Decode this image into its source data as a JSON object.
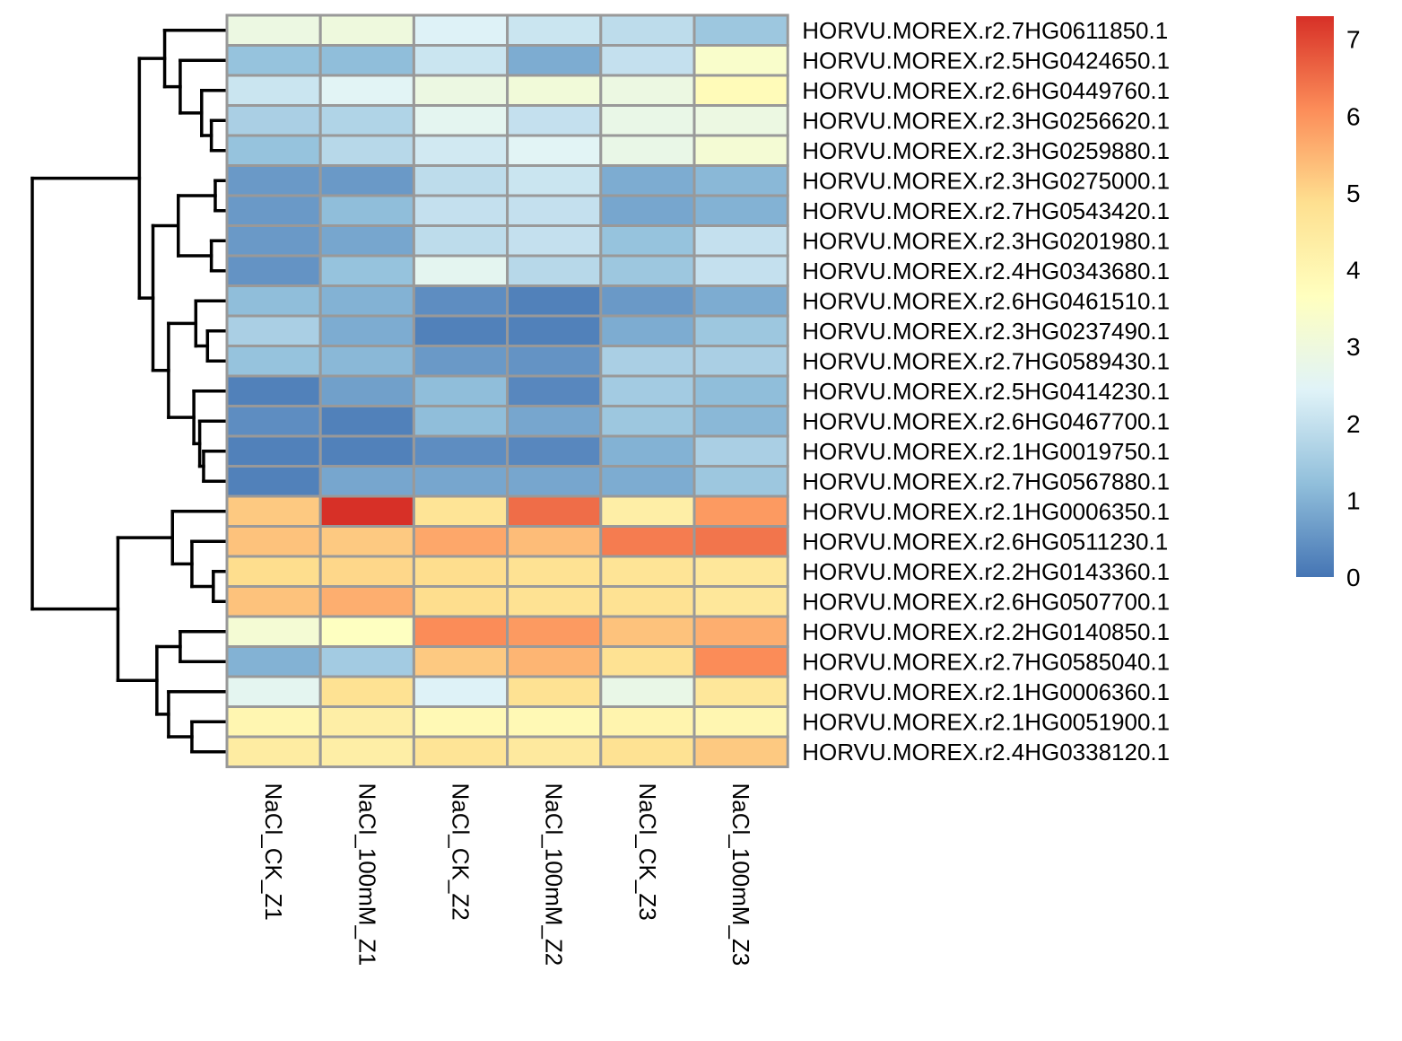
{
  "chart_data": {
    "type": "heatmap",
    "title": "",
    "columns": [
      "NaCl_CK_Z1",
      "NaCl_100mM_Z1",
      "NaCl_CK_Z2",
      "NaCl_100mM_Z2",
      "NaCl_CK_Z3",
      "NaCl_100mM_Z3"
    ],
    "rows": [
      "HORVU.MOREX.r2.7HG0611850.1",
      "HORVU.MOREX.r2.5HG0424650.1",
      "HORVU.MOREX.r2.6HG0449760.1",
      "HORVU.MOREX.r2.3HG0256620.1",
      "HORVU.MOREX.r2.3HG0259880.1",
      "HORVU.MOREX.r2.3HG0275000.1",
      "HORVU.MOREX.r2.7HG0543420.1",
      "HORVU.MOREX.r2.3HG0201980.1",
      "HORVU.MOREX.r2.4HG0343680.1",
      "HORVU.MOREX.r2.6HG0461510.1",
      "HORVU.MOREX.r2.3HG0237490.1",
      "HORVU.MOREX.r2.7HG0589430.1",
      "HORVU.MOREX.r2.5HG0414230.1",
      "HORVU.MOREX.r2.6HG0467700.1",
      "HORVU.MOREX.r2.1HG0019750.1",
      "HORVU.MOREX.r2.7HG0567880.1",
      "HORVU.MOREX.r2.1HG0006350.1",
      "HORVU.MOREX.r2.6HG0511230.1",
      "HORVU.MOREX.r2.2HG0143360.1",
      "HORVU.MOREX.r2.6HG0507700.1",
      "HORVU.MOREX.r2.2HG0140850.1",
      "HORVU.MOREX.r2.7HG0585040.1",
      "HORVU.MOREX.r2.1HG0006360.1",
      "HORVU.MOREX.r2.1HG0051900.1",
      "HORVU.MOREX.r2.4HG0338120.1"
    ],
    "values": [
      [
        2.9,
        3.0,
        2.4,
        2.1,
        1.9,
        1.4
      ],
      [
        1.3,
        1.2,
        2.1,
        0.9,
        2.0,
        3.4
      ],
      [
        2.1,
        2.5,
        2.9,
        3.1,
        2.9,
        3.8
      ],
      [
        1.6,
        1.7,
        2.6,
        2.0,
        2.8,
        2.9
      ],
      [
        1.3,
        1.8,
        2.2,
        2.5,
        2.8,
        3.2
      ],
      [
        0.6,
        0.6,
        1.9,
        2.1,
        0.9,
        1.1
      ],
      [
        0.6,
        1.2,
        2.0,
        2.0,
        0.8,
        1.0
      ],
      [
        0.6,
        0.8,
        1.9,
        2.0,
        1.3,
        2.0
      ],
      [
        0.5,
        1.3,
        2.6,
        1.8,
        1.4,
        2.0
      ],
      [
        1.2,
        1.0,
        0.4,
        0.2,
        0.6,
        0.9
      ],
      [
        1.6,
        0.9,
        0.2,
        0.2,
        0.9,
        1.4
      ],
      [
        1.3,
        1.1,
        0.6,
        0.5,
        1.6,
        1.6
      ],
      [
        0.2,
        0.7,
        1.2,
        0.3,
        1.5,
        1.2
      ],
      [
        0.4,
        0.2,
        1.2,
        0.8,
        1.4,
        1.1
      ],
      [
        0.2,
        0.2,
        0.4,
        0.3,
        1.0,
        1.6
      ],
      [
        0.2,
        0.8,
        0.8,
        0.8,
        0.9,
        1.4
      ],
      [
        5.2,
        7.3,
        4.7,
        6.5,
        4.3,
        5.9
      ],
      [
        5.3,
        5.2,
        5.7,
        5.4,
        6.3,
        6.4
      ],
      [
        4.9,
        5.0,
        4.9,
        4.8,
        4.7,
        4.6
      ],
      [
        5.3,
        5.6,
        4.9,
        4.8,
        4.8,
        4.6
      ],
      [
        3.2,
        3.6,
        6.1,
        5.9,
        5.3,
        5.6
      ],
      [
        1.0,
        1.5,
        5.2,
        5.5,
        4.8,
        6.1
      ],
      [
        2.6,
        4.8,
        2.4,
        4.8,
        2.8,
        4.6
      ],
      [
        4.0,
        4.3,
        3.9,
        3.9,
        4.1,
        4.0
      ],
      [
        4.4,
        4.3,
        4.7,
        4.5,
        4.8,
        5.2
      ]
    ],
    "color_scale": {
      "min": 0,
      "max": 7.3,
      "colors": [
        "#4575b4",
        "#91bfdb",
        "#e0f3f8",
        "#ffffbf",
        "#fee090",
        "#fc8d59",
        "#d73027"
      ],
      "ticks": [
        "0",
        "1",
        "2",
        "3",
        "4",
        "5",
        "6",
        "7"
      ]
    },
    "legend": "right",
    "row_dendrogram": true,
    "column_dendrogram": false
  }
}
